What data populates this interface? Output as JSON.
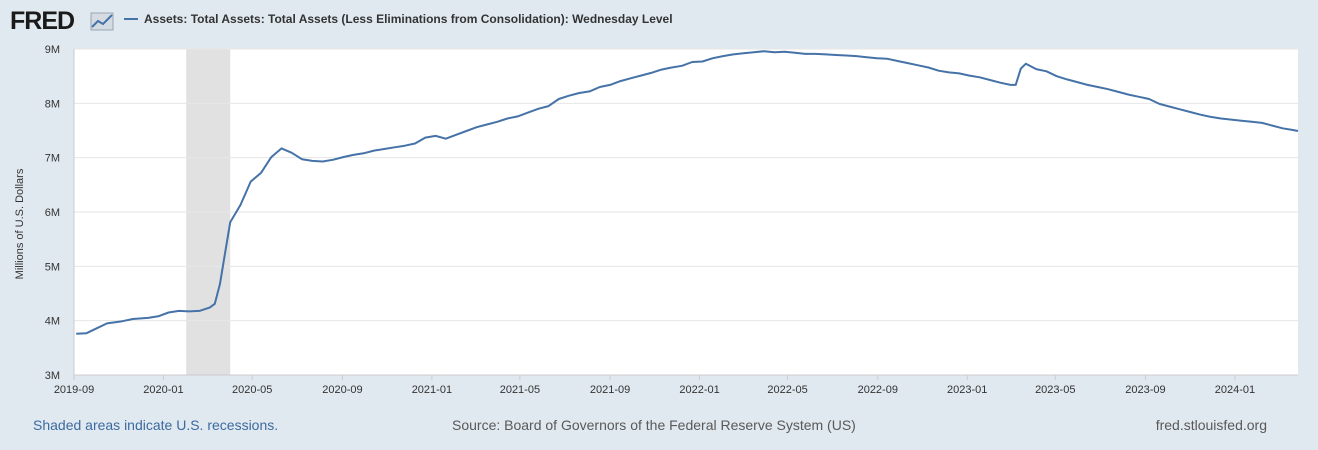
{
  "logo": {
    "text": "FRED"
  },
  "legend": {
    "label": "Assets: Total Assets: Total Assets (Less Eliminations from Consolidation): Wednesday Level"
  },
  "footer": {
    "recession_note": "Shaded areas indicate U.S. recessions.",
    "source": "Source: Board of Governors of the Federal Reserve System (US)",
    "site": "fred.stlouisfed.org"
  },
  "colors": {
    "background": "#e1e9f0",
    "plot_background": "#ffffff",
    "line": "#4572a7",
    "recession_shading": "#e1e1e1",
    "grid": "#e6e6e6",
    "text": "#333333",
    "link": "#3b6aa0"
  },
  "chart_data": {
    "type": "line",
    "title": "",
    "xlabel": "",
    "ylabel": "Millions of U.S. Dollars",
    "ylim": [
      3000000,
      9000000
    ],
    "yticks": [
      {
        "label": "3M",
        "value": 3000000
      },
      {
        "label": "4M",
        "value": 4000000
      },
      {
        "label": "5M",
        "value": 5000000
      },
      {
        "label": "6M",
        "value": 6000000
      },
      {
        "label": "7M",
        "value": 7000000
      },
      {
        "label": "8M",
        "value": 8000000
      },
      {
        "label": "9M",
        "value": 9000000
      }
    ],
    "xlim": [
      "2019-09-01",
      "2024-03-27"
    ],
    "xticks": [
      "2019-09",
      "2020-01",
      "2020-05",
      "2020-09",
      "2021-01",
      "2021-05",
      "2021-09",
      "2022-01",
      "2022-05",
      "2022-09",
      "2023-01",
      "2023-05",
      "2023-09",
      "2024-01"
    ],
    "grid": true,
    "legend_position": "top-left",
    "recessions": [
      {
        "start": "2020-02-01",
        "end": "2020-04-01"
      }
    ],
    "series": [
      {
        "name": "Assets: Total Assets: Total Assets (Less Eliminations from Consolidation): Wednesday Level",
        "points": [
          [
            "2019-09-04",
            3760000
          ],
          [
            "2019-09-18",
            3770000
          ],
          [
            "2019-10-02",
            3860000
          ],
          [
            "2019-10-16",
            3950000
          ],
          [
            "2019-11-06",
            3990000
          ],
          [
            "2019-11-20",
            4030000
          ],
          [
            "2019-12-11",
            4050000
          ],
          [
            "2019-12-25",
            4080000
          ],
          [
            "2020-01-08",
            4150000
          ],
          [
            "2020-01-22",
            4180000
          ],
          [
            "2020-02-05",
            4170000
          ],
          [
            "2020-02-19",
            4180000
          ],
          [
            "2020-03-04",
            4240000
          ],
          [
            "2020-03-11",
            4310000
          ],
          [
            "2020-03-18",
            4670000
          ],
          [
            "2020-03-25",
            5250000
          ],
          [
            "2020-04-01",
            5810000
          ],
          [
            "2020-04-15",
            6130000
          ],
          [
            "2020-04-29",
            6560000
          ],
          [
            "2020-05-13",
            6720000
          ],
          [
            "2020-05-27",
            7010000
          ],
          [
            "2020-06-10",
            7170000
          ],
          [
            "2020-06-24",
            7090000
          ],
          [
            "2020-07-08",
            6970000
          ],
          [
            "2020-07-22",
            6940000
          ],
          [
            "2020-08-05",
            6930000
          ],
          [
            "2020-08-19",
            6960000
          ],
          [
            "2020-09-02",
            7010000
          ],
          [
            "2020-09-16",
            7050000
          ],
          [
            "2020-09-30",
            7080000
          ],
          [
            "2020-10-14",
            7130000
          ],
          [
            "2020-10-28",
            7160000
          ],
          [
            "2020-11-11",
            7190000
          ],
          [
            "2020-11-25",
            7220000
          ],
          [
            "2020-12-09",
            7260000
          ],
          [
            "2020-12-23",
            7370000
          ],
          [
            "2021-01-06",
            7400000
          ],
          [
            "2021-01-20",
            7350000
          ],
          [
            "2021-02-03",
            7420000
          ],
          [
            "2021-02-17",
            7490000
          ],
          [
            "2021-03-03",
            7560000
          ],
          [
            "2021-03-17",
            7610000
          ],
          [
            "2021-03-31",
            7660000
          ],
          [
            "2021-04-14",
            7720000
          ],
          [
            "2021-04-28",
            7760000
          ],
          [
            "2021-05-12",
            7830000
          ],
          [
            "2021-05-26",
            7900000
          ],
          [
            "2021-06-09",
            7950000
          ],
          [
            "2021-06-23",
            8080000
          ],
          [
            "2021-07-07",
            8140000
          ],
          [
            "2021-07-21",
            8190000
          ],
          [
            "2021-08-04",
            8220000
          ],
          [
            "2021-08-18",
            8300000
          ],
          [
            "2021-09-01",
            8340000
          ],
          [
            "2021-09-15",
            8410000
          ],
          [
            "2021-09-29",
            8460000
          ],
          [
            "2021-10-13",
            8510000
          ],
          [
            "2021-10-27",
            8560000
          ],
          [
            "2021-11-10",
            8620000
          ],
          [
            "2021-11-24",
            8660000
          ],
          [
            "2021-12-08",
            8690000
          ],
          [
            "2021-12-22",
            8760000
          ],
          [
            "2022-01-05",
            8770000
          ],
          [
            "2022-01-19",
            8830000
          ],
          [
            "2022-02-02",
            8870000
          ],
          [
            "2022-02-16",
            8900000
          ],
          [
            "2022-03-02",
            8920000
          ],
          [
            "2022-03-16",
            8940000
          ],
          [
            "2022-03-30",
            8960000
          ],
          [
            "2022-04-13",
            8940000
          ],
          [
            "2022-04-27",
            8950000
          ],
          [
            "2022-05-11",
            8930000
          ],
          [
            "2022-05-25",
            8910000
          ],
          [
            "2022-06-08",
            8910000
          ],
          [
            "2022-06-22",
            8900000
          ],
          [
            "2022-07-06",
            8890000
          ],
          [
            "2022-07-20",
            8880000
          ],
          [
            "2022-08-03",
            8870000
          ],
          [
            "2022-08-17",
            8850000
          ],
          [
            "2022-08-31",
            8830000
          ],
          [
            "2022-09-14",
            8820000
          ],
          [
            "2022-09-28",
            8780000
          ],
          [
            "2022-10-12",
            8740000
          ],
          [
            "2022-10-26",
            8700000
          ],
          [
            "2022-11-09",
            8660000
          ],
          [
            "2022-11-23",
            8600000
          ],
          [
            "2022-12-07",
            8570000
          ],
          [
            "2022-12-21",
            8550000
          ],
          [
            "2023-01-04",
            8510000
          ],
          [
            "2023-01-18",
            8480000
          ],
          [
            "2023-02-01",
            8430000
          ],
          [
            "2023-02-15",
            8380000
          ],
          [
            "2023-03-01",
            8340000
          ],
          [
            "2023-03-08",
            8340000
          ],
          [
            "2023-03-15",
            8640000
          ],
          [
            "2023-03-22",
            8730000
          ],
          [
            "2023-04-05",
            8630000
          ],
          [
            "2023-04-19",
            8590000
          ],
          [
            "2023-05-03",
            8500000
          ],
          [
            "2023-05-17",
            8440000
          ],
          [
            "2023-05-31",
            8390000
          ],
          [
            "2023-06-14",
            8340000
          ],
          [
            "2023-06-28",
            8300000
          ],
          [
            "2023-07-12",
            8260000
          ],
          [
            "2023-07-26",
            8210000
          ],
          [
            "2023-08-09",
            8160000
          ],
          [
            "2023-08-23",
            8120000
          ],
          [
            "2023-09-06",
            8080000
          ],
          [
            "2023-09-20",
            7990000
          ],
          [
            "2023-10-04",
            7940000
          ],
          [
            "2023-10-18",
            7890000
          ],
          [
            "2023-11-01",
            7840000
          ],
          [
            "2023-11-15",
            7790000
          ],
          [
            "2023-11-29",
            7750000
          ],
          [
            "2023-12-13",
            7720000
          ],
          [
            "2023-12-27",
            7700000
          ],
          [
            "2024-01-10",
            7680000
          ],
          [
            "2024-01-24",
            7660000
          ],
          [
            "2024-02-07",
            7640000
          ],
          [
            "2024-02-21",
            7590000
          ],
          [
            "2024-03-06",
            7540000
          ],
          [
            "2024-03-20",
            7510000
          ],
          [
            "2024-03-27",
            7490000
          ]
        ]
      }
    ]
  }
}
